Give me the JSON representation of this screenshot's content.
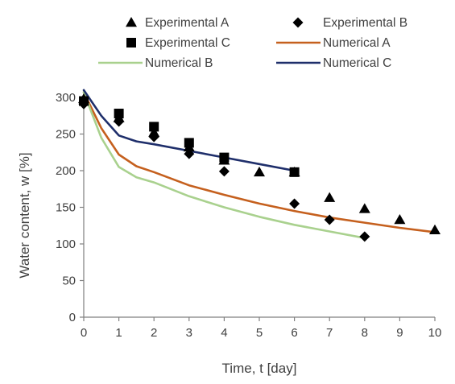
{
  "chart_data": {
    "type": "scatter",
    "title": "",
    "xlabel": "Time, t [day]",
    "ylabel": "Water content, w [%]",
    "xlim": [
      0,
      10
    ],
    "ylim": [
      0,
      300
    ],
    "x_ticks": [
      "0",
      "1",
      "2",
      "3",
      "4",
      "5",
      "6",
      "7",
      "8",
      "9",
      "10"
    ],
    "y_ticks": [
      "0",
      "50",
      "100",
      "150",
      "200",
      "250",
      "300"
    ],
    "grid": false,
    "legend_position": "top",
    "series": [
      {
        "name": "Experimental A",
        "kind": "markers",
        "marker": "triangle",
        "color": "#000000",
        "points": [
          [
            0,
            298
          ],
          [
            1,
            272
          ],
          [
            2,
            252
          ],
          [
            3,
            232
          ],
          [
            4,
            214
          ],
          [
            5,
            198
          ],
          [
            6,
            198
          ],
          [
            7,
            163
          ],
          [
            8,
            148
          ],
          [
            9,
            133
          ],
          [
            10,
            119
          ]
        ]
      },
      {
        "name": "Experimental B",
        "kind": "markers",
        "marker": "diamond",
        "color": "#000000",
        "points": [
          [
            0,
            291
          ],
          [
            1,
            267
          ],
          [
            2,
            246
          ],
          [
            3,
            223
          ],
          [
            4,
            199
          ],
          [
            6,
            155
          ],
          [
            7,
            133
          ],
          [
            8,
            110
          ]
        ]
      },
      {
        "name": "Experimental C",
        "kind": "markers",
        "marker": "square",
        "color": "#000000",
        "points": [
          [
            0,
            295
          ],
          [
            1,
            278
          ],
          [
            2,
            260
          ],
          [
            3,
            238
          ],
          [
            4,
            218
          ],
          [
            6,
            198
          ]
        ]
      },
      {
        "name": "Numerical A",
        "kind": "line",
        "color": "#c5601e",
        "points": [
          [
            0,
            307
          ],
          [
            0.5,
            258
          ],
          [
            1,
            222
          ],
          [
            1.5,
            206
          ],
          [
            2,
            198
          ],
          [
            3,
            180
          ],
          [
            4,
            167
          ],
          [
            5,
            155
          ],
          [
            6,
            145
          ],
          [
            7,
            136
          ],
          [
            8,
            129
          ],
          [
            9,
            122
          ],
          [
            10,
            116
          ]
        ]
      },
      {
        "name": "Numerical B",
        "kind": "line",
        "color": "#a9d18e",
        "points": [
          [
            0,
            307
          ],
          [
            0.5,
            245
          ],
          [
            1,
            205
          ],
          [
            1.5,
            191
          ],
          [
            2,
            184
          ],
          [
            3,
            165
          ],
          [
            4,
            150
          ],
          [
            5,
            137
          ],
          [
            6,
            126
          ],
          [
            7,
            117
          ],
          [
            8,
            108
          ]
        ]
      },
      {
        "name": "Numerical C",
        "kind": "line",
        "color": "#1f2f6b",
        "points": [
          [
            0,
            310
          ],
          [
            0.5,
            275
          ],
          [
            1,
            248
          ],
          [
            1.5,
            240
          ],
          [
            2,
            236
          ],
          [
            3,
            227
          ],
          [
            4,
            218
          ],
          [
            5,
            209
          ],
          [
            6,
            200
          ]
        ]
      }
    ]
  }
}
